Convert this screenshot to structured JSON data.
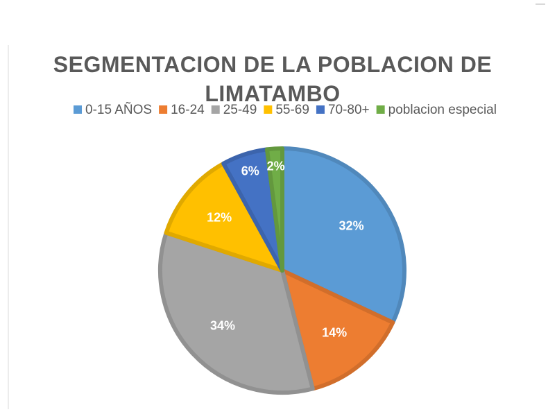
{
  "chart_data": {
    "type": "pie",
    "title": "SEGMENTACION DE LA POBLACION DE LIMATAMBO",
    "categories": [
      "0-15 AÑOS",
      "16-24",
      "25-49",
      "55-69",
      "70-80+",
      "poblacion especial"
    ],
    "values": [
      32,
      14,
      34,
      12,
      6,
      2
    ],
    "value_labels": [
      "32%",
      "14%",
      "34%",
      "12%",
      "6%",
      "2%"
    ],
    "colors": [
      "#5b9bd5",
      "#ed7d31",
      "#a5a5a5",
      "#ffc000",
      "#4472c4",
      "#70ad47"
    ],
    "legend": "top"
  }
}
